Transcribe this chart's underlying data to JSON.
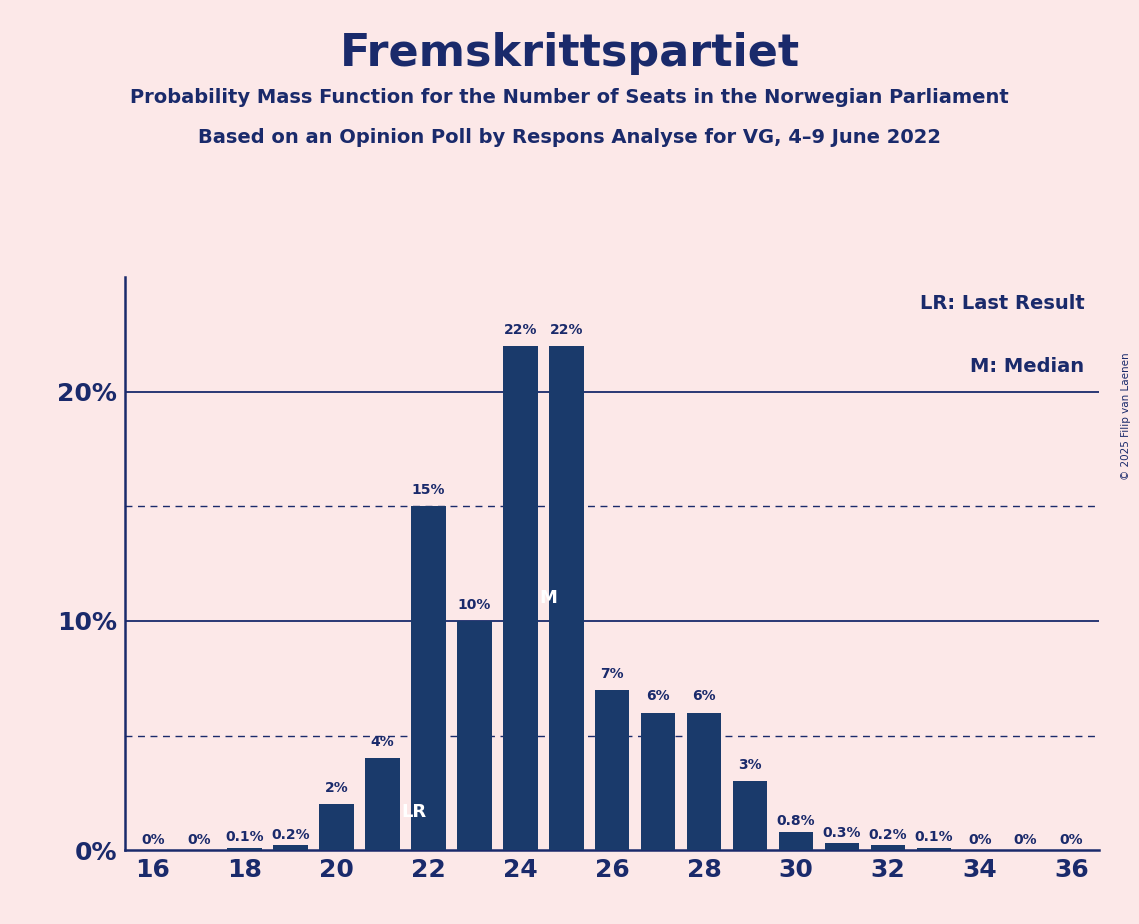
{
  "title": "Fremskrittspartiet",
  "subtitle1": "Probability Mass Function for the Number of Seats in the Norwegian Parliament",
  "subtitle2": "Based on an Opinion Poll by Respons Analyse for VG, 4–9 June 2022",
  "copyright": "© 2025 Filip van Laenen",
  "legend_lr": "LR: Last Result",
  "legend_m": "M: Median",
  "seats": [
    16,
    17,
    18,
    19,
    20,
    21,
    22,
    23,
    24,
    25,
    26,
    27,
    28,
    29,
    30,
    31,
    32,
    33,
    34,
    35,
    36
  ],
  "values": [
    0.0,
    0.0,
    0.1,
    0.2,
    2.0,
    4.0,
    15.0,
    10.0,
    22.0,
    22.0,
    7.0,
    6.0,
    6.0,
    3.0,
    0.8,
    0.3,
    0.2,
    0.1,
    0.0,
    0.0,
    0.0
  ],
  "labels": [
    "0%",
    "0%",
    "0.1%",
    "0.2%",
    "2%",
    "4%",
    "15%",
    "10%",
    "22%",
    "22%",
    "7%",
    "6%",
    "6%",
    "3%",
    "0.8%",
    "0.3%",
    "0.2%",
    "0.1%",
    "0%",
    "0%",
    "0%"
  ],
  "lr_seat": 21,
  "median_seat": 24,
  "bar_color": "#1a3a6b",
  "bg_color": "#fce8e8",
  "text_color": "#1a2a6b",
  "dotted_line_y": [
    15.0,
    5.0
  ],
  "solid_line_y": [
    20.0,
    10.0
  ],
  "xlabel_ticks": [
    16,
    18,
    20,
    22,
    24,
    26,
    28,
    30,
    32,
    34,
    36
  ],
  "ytick_labels": [
    "0%",
    "10%",
    "20%"
  ],
  "ytick_values": [
    0,
    10,
    20
  ],
  "ylim": [
    0,
    25
  ],
  "bar_width": 0.75,
  "title_fontsize": 32,
  "subtitle_fontsize": 14,
  "tick_fontsize": 18,
  "label_fontsize": 10,
  "legend_fontsize": 14,
  "marker_fontsize": 13
}
